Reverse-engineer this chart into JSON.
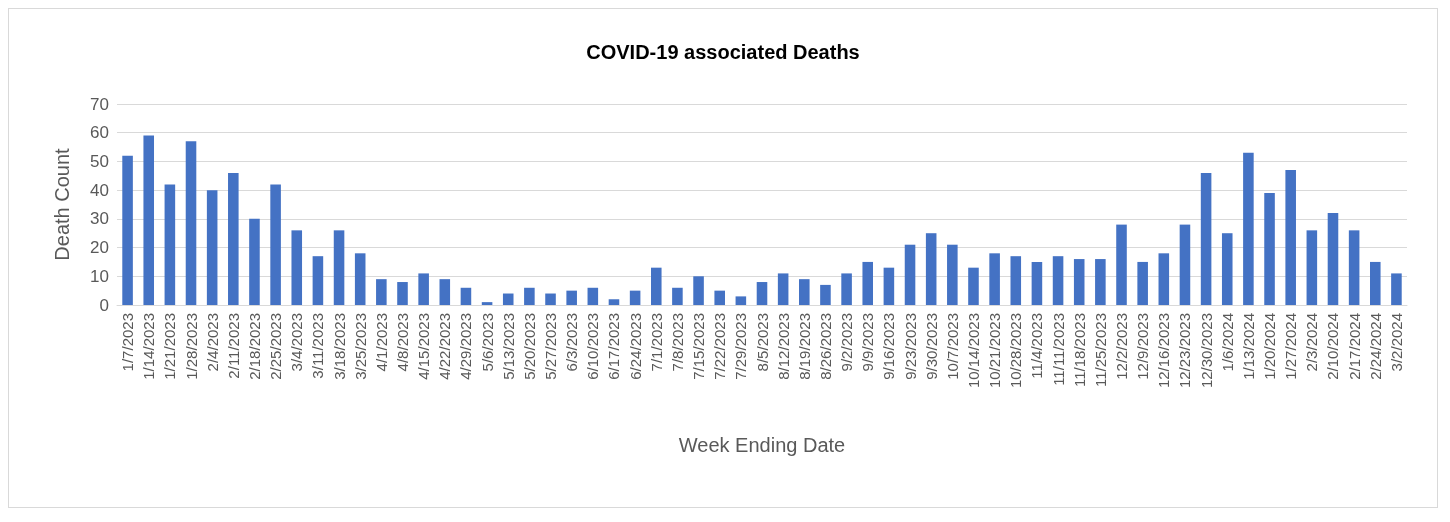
{
  "chart_data": {
    "type": "bar",
    "title": "COVID-19 associated Deaths",
    "xlabel": "Week Ending Date",
    "ylabel": "Death Count",
    "categories": [
      "1/7/2023",
      "1/14/2023",
      "1/21/2023",
      "1/28/2023",
      "2/4/2023",
      "2/11/2023",
      "2/18/2023",
      "2/25/2023",
      "3/4/2023",
      "3/11/2023",
      "3/18/2023",
      "3/25/2023",
      "4/1/2023",
      "4/8/2023",
      "4/15/2023",
      "4/22/2023",
      "4/29/2023",
      "5/6/2023",
      "5/13/2023",
      "5/20/2023",
      "5/27/2023",
      "6/3/2023",
      "6/10/2023",
      "6/17/2023",
      "6/24/2023",
      "7/1/2023",
      "7/8/2023",
      "7/15/2023",
      "7/22/2023",
      "7/29/2023",
      "8/5/2023",
      "8/12/2023",
      "8/19/2023",
      "8/26/2023",
      "9/2/2023",
      "9/9/2023",
      "9/16/2023",
      "9/23/2023",
      "9/30/2023",
      "10/7/2023",
      "10/14/2023",
      "10/21/2023",
      "10/28/2023",
      "11/4/2023",
      "11/11/2023",
      "11/18/2023",
      "11/25/2023",
      "12/2/2023",
      "12/9/2023",
      "12/16/2023",
      "12/23/2023",
      "12/30/2023",
      "1/6/2024",
      "1/13/2024",
      "1/20/2024",
      "1/27/2024",
      "2/3/2024",
      "2/10/2024",
      "2/17/2024",
      "2/24/2024",
      "3/2/2024"
    ],
    "values": [
      52,
      59,
      42,
      57,
      40,
      46,
      30,
      42,
      26,
      17,
      26,
      18,
      9,
      8,
      11,
      9,
      6,
      1,
      4,
      6,
      4,
      5,
      6,
      2,
      5,
      13,
      6,
      10,
      5,
      3,
      8,
      11,
      9,
      7,
      11,
      15,
      13,
      21,
      25,
      21,
      13,
      18,
      17,
      15,
      17,
      16,
      16,
      28,
      15,
      18,
      28,
      46,
      25,
      53,
      39,
      47,
      26,
      32,
      26,
      15,
      11
    ],
    "color": "#4472c4",
    "ylim": [
      0,
      70
    ],
    "yticks": [
      0,
      10,
      20,
      30,
      40,
      50,
      60,
      70
    ],
    "grid": "y"
  }
}
